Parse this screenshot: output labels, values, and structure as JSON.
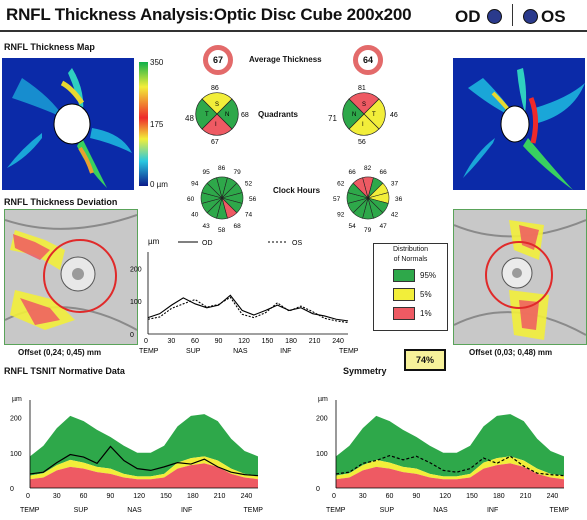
{
  "header": {
    "title": "RNFL Thickness Analysis:Optic Disc Cube 200x200",
    "od_label": "OD",
    "os_label": "OS"
  },
  "sections": {
    "thickness_map": "RNFL Thickness Map",
    "thickness_deviation": "RNFL Thickness Deviation",
    "tsnit": "RNFL TSNIT Normative Data",
    "symmetry": "Symmetry"
  },
  "colorbar": {
    "top": "350",
    "mid": "175",
    "bottom": "0 µm"
  },
  "average_thickness": {
    "label": "Average Thickness",
    "od": "67",
    "os": "64"
  },
  "quadrants": {
    "label": "Quadrants",
    "od": {
      "s": "86",
      "n": "68",
      "i": "67",
      "t": "48",
      "letters": [
        "S",
        "N",
        "I",
        "T"
      ]
    },
    "os": {
      "s": "81",
      "n": "46",
      "i": "56",
      "t": "71",
      "letters": [
        "S",
        "T",
        "I",
        "N"
      ]
    }
  },
  "clock_hours": {
    "label": "Clock Hours",
    "od": [
      "86",
      "79",
      "52",
      "56",
      "74",
      "68",
      "58",
      "43",
      "40",
      "60",
      "94",
      "95"
    ],
    "os": [
      "82",
      "66",
      "37",
      "36",
      "42",
      "47",
      "79",
      "54",
      "92",
      "57",
      "62",
      "66"
    ]
  },
  "offsets": {
    "od": "Offset (0,24; 0,45) mm",
    "os": "Offset (0,03; 0,48) mm"
  },
  "symmetry_value": "74%",
  "legend": {
    "title_line1": "Distribution",
    "title_line2": "of Normals",
    "items": [
      {
        "label": "95%",
        "color": "#2ea84a"
      },
      {
        "label": "5%",
        "color": "#f2ee3a"
      },
      {
        "label": "1%",
        "color": "#ee5a63"
      }
    ]
  },
  "colors": {
    "green": "#2ea84a",
    "yellow": "#f2ee3a",
    "red": "#ee5a63",
    "white": "#ffffff"
  },
  "center_chart": {
    "unit": "µm",
    "legend_od": "OD",
    "legend_os": "OS",
    "y_ticks": [
      "200",
      "100",
      "0"
    ],
    "x_ticks": [
      "0",
      "30",
      "60",
      "90",
      "120",
      "150",
      "180",
      "210",
      "240"
    ],
    "region_labels": [
      "TEMP",
      "SUP",
      "NAS",
      "INF",
      "TEMP"
    ]
  },
  "tsnit_axes": {
    "unit": "µm",
    "y_ticks": [
      "200",
      "100",
      "0"
    ],
    "x_ticks": [
      "0",
      "30",
      "60",
      "90",
      "120",
      "150",
      "180",
      "210",
      "240"
    ],
    "region_labels": [
      "TEMP",
      "SUP",
      "NAS",
      "INF",
      "TEMP"
    ]
  },
  "chart_data": [
    {
      "type": "line",
      "title": "",
      "x": [
        0,
        15,
        30,
        45,
        60,
        75,
        90,
        105,
        120,
        135,
        150,
        165,
        180,
        195,
        210,
        225,
        240,
        255
      ],
      "series": [
        {
          "name": "OD",
          "style": "solid",
          "values": [
            50,
            62,
            88,
            110,
            92,
            80,
            88,
            118,
            72,
            58,
            72,
            88,
            72,
            80,
            62,
            55,
            45,
            40
          ]
        },
        {
          "name": "OS",
          "style": "dashed",
          "values": [
            45,
            52,
            78,
            92,
            105,
            82,
            90,
            112,
            60,
            50,
            65,
            95,
            70,
            85,
            68,
            48,
            40,
            35
          ]
        }
      ],
      "xlabel": "",
      "ylabel": "µm",
      "ylim": [
        0,
        250
      ],
      "xlim": [
        0,
        255
      ]
    },
    {
      "type": "area",
      "title": "",
      "x": [
        0,
        15,
        30,
        45,
        60,
        75,
        90,
        105,
        120,
        135,
        150,
        165,
        180,
        195,
        210,
        225,
        240,
        255
      ],
      "bands": {
        "p1": [
          25,
          30,
          50,
          60,
          55,
          45,
          40,
          30,
          25,
          25,
          30,
          55,
          65,
          70,
          60,
          40,
          30,
          25
        ],
        "p5": [
          35,
          42,
          65,
          80,
          72,
          60,
          55,
          40,
          33,
          33,
          40,
          72,
          85,
          90,
          78,
          55,
          40,
          35
        ],
        "p95": [
          90,
          120,
          170,
          205,
          190,
          165,
          145,
          120,
          100,
          100,
          120,
          175,
          205,
          210,
          190,
          140,
          105,
          90
        ]
      },
      "series": [
        {
          "name": "OD",
          "style": "solid",
          "values": [
            40,
            45,
            72,
            95,
            88,
            70,
            118,
            78,
            55,
            50,
            60,
            72,
            68,
            82,
            60,
            45,
            38,
            35
          ]
        }
      ],
      "xlabel": "",
      "ylabel": "µm",
      "ylim": [
        0,
        250
      ],
      "xlim": [
        0,
        255
      ]
    },
    {
      "type": "area",
      "title": "",
      "x": [
        0,
        15,
        30,
        45,
        60,
        75,
        90,
        105,
        120,
        135,
        150,
        165,
        180,
        195,
        210,
        225,
        240,
        255
      ],
      "bands": {
        "p1": [
          25,
          30,
          50,
          60,
          55,
          45,
          40,
          30,
          25,
          25,
          30,
          55,
          65,
          70,
          60,
          40,
          30,
          25
        ],
        "p5": [
          35,
          42,
          65,
          80,
          72,
          60,
          55,
          40,
          33,
          33,
          40,
          72,
          85,
          90,
          78,
          55,
          40,
          35
        ],
        "p95": [
          90,
          120,
          170,
          205,
          190,
          165,
          145,
          120,
          100,
          100,
          120,
          175,
          205,
          210,
          190,
          140,
          105,
          90
        ]
      },
      "series": [
        {
          "name": "OS",
          "style": "dashed",
          "values": [
            40,
            45,
            70,
            78,
            92,
            80,
            90,
            72,
            50,
            45,
            55,
            85,
            70,
            90,
            62,
            42,
            38,
            35
          ]
        }
      ],
      "xlabel": "",
      "ylabel": "µm",
      "ylim": [
        0,
        250
      ],
      "xlim": [
        0,
        255
      ]
    }
  ]
}
